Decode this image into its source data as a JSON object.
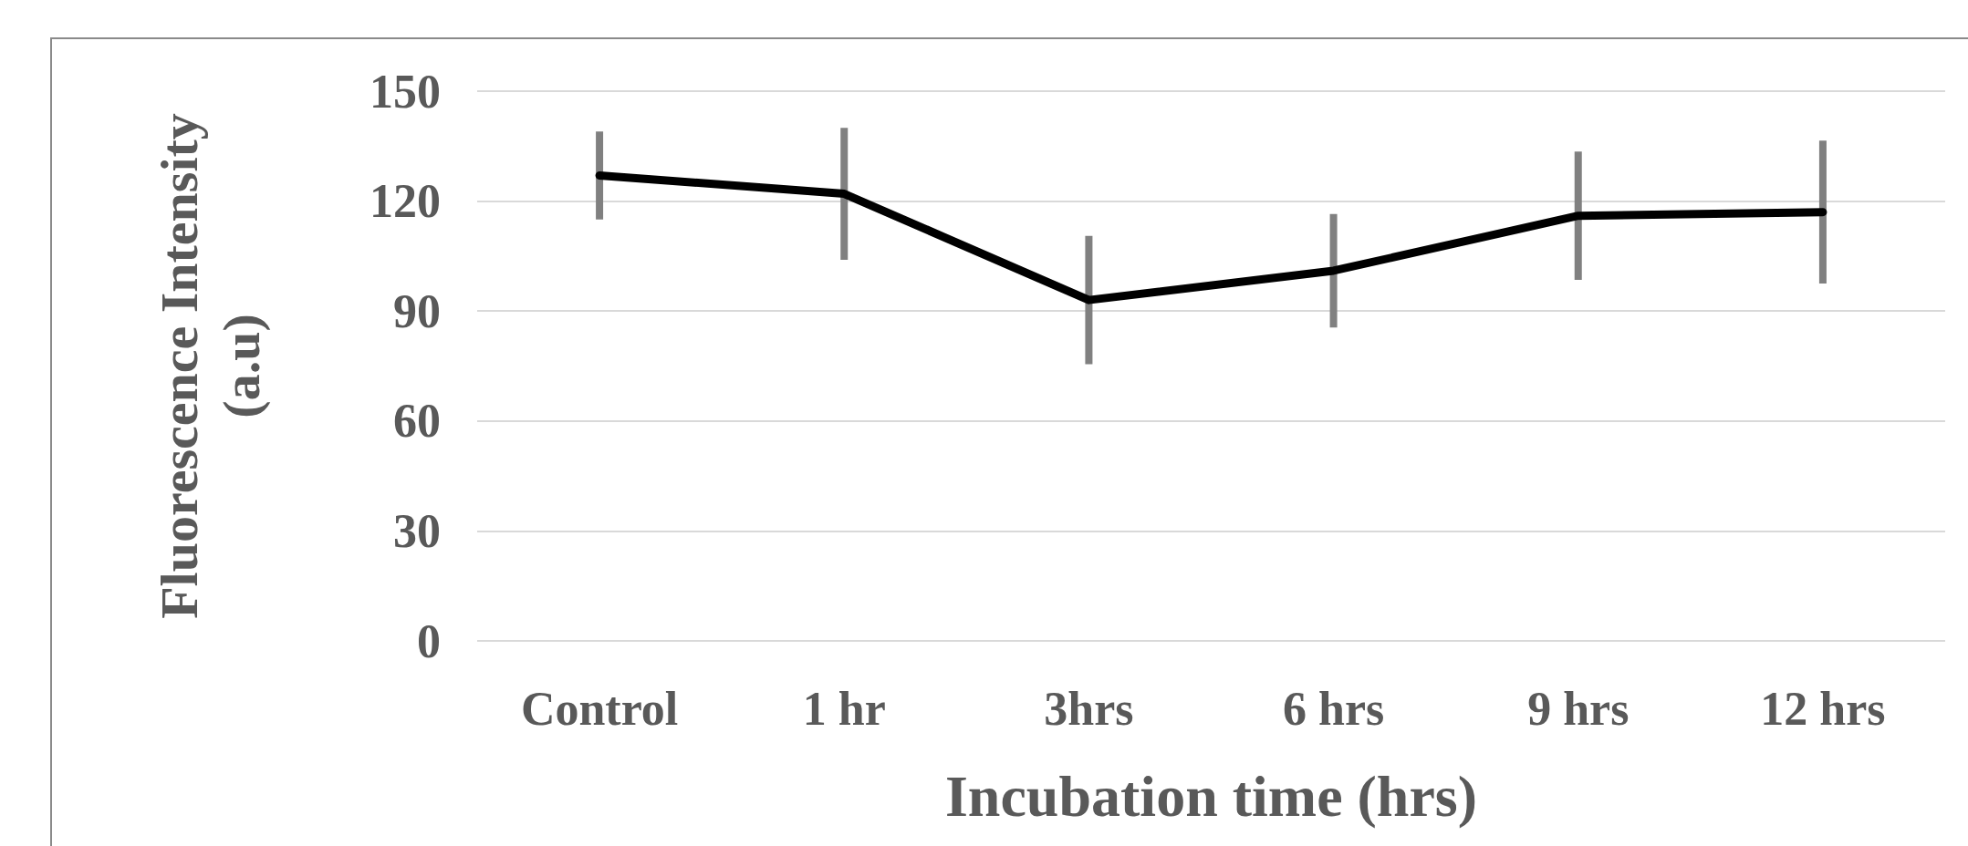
{
  "chart_data": {
    "type": "line",
    "xlabel": "Incubation time (hrs)",
    "ylabel": "Fluorescence Intensity (a.u)",
    "categories": [
      "Control",
      "1 hr",
      "3hrs",
      "6 hrs",
      "9 hrs",
      "12 hrs"
    ],
    "series": [
      {
        "color": "#000000",
        "values": [
          127,
          122,
          93,
          101,
          116,
          117
        ],
        "errors": [
          12,
          18,
          17.5,
          15.5,
          17.5,
          19.5
        ]
      }
    ],
    "ylim": [
      0,
      150
    ],
    "yticks": [
      0,
      30,
      60,
      90,
      120,
      150
    ],
    "grid": "y",
    "line_style": "solid"
  }
}
